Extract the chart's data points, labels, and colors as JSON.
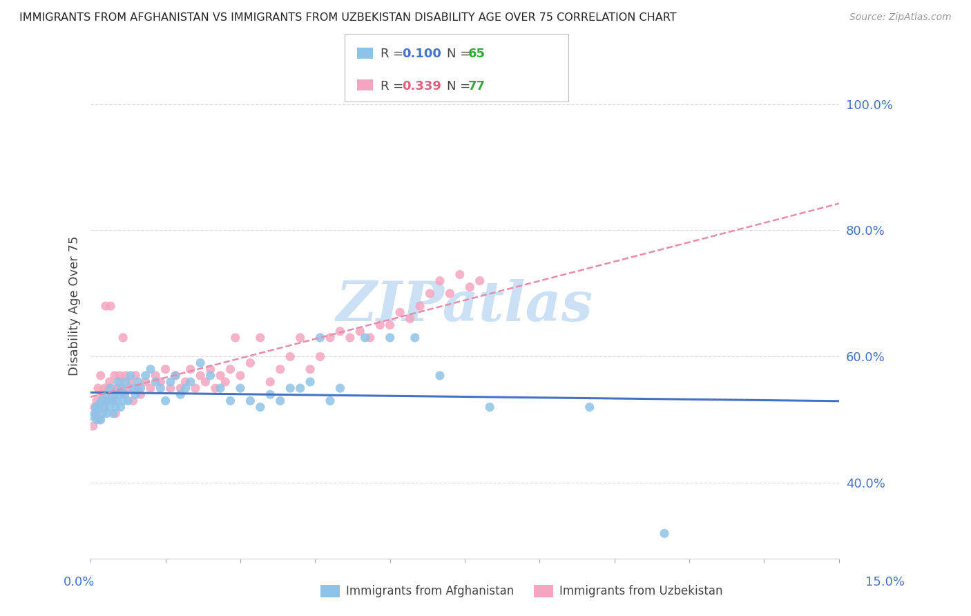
{
  "title": "IMMIGRANTS FROM AFGHANISTAN VS IMMIGRANTS FROM UZBEKISTAN DISABILITY AGE OVER 75 CORRELATION CHART",
  "source": "Source: ZipAtlas.com",
  "ylabel": "Disability Age Over 75",
  "xmin": 0.0,
  "xmax": 15.0,
  "ymin": 28.0,
  "ymax": 108.0,
  "yticks": [
    40.0,
    60.0,
    80.0,
    100.0
  ],
  "grid_color": "#dddddd",
  "background_color": "#ffffff",
  "series1_label": "Immigrants from Afghanistan",
  "series1_color": "#8ec3e8",
  "series1_R": 0.1,
  "series1_N": 65,
  "series1_x": [
    0.05,
    0.08,
    0.1,
    0.12,
    0.15,
    0.18,
    0.2,
    0.22,
    0.25,
    0.28,
    0.3,
    0.32,
    0.35,
    0.38,
    0.4,
    0.42,
    0.45,
    0.48,
    0.5,
    0.52,
    0.55,
    0.58,
    0.6,
    0.62,
    0.65,
    0.68,
    0.7,
    0.75,
    0.8,
    0.85,
    0.9,
    0.95,
    1.0,
    1.1,
    1.2,
    1.3,
    1.4,
    1.5,
    1.6,
    1.7,
    1.8,
    1.9,
    2.0,
    2.2,
    2.4,
    2.6,
    2.8,
    3.0,
    3.2,
    3.4,
    3.6,
    3.8,
    4.0,
    4.2,
    4.4,
    4.6,
    4.8,
    5.0,
    5.5,
    6.0,
    6.5,
    7.0,
    8.0,
    10.0,
    11.5
  ],
  "series1_y": [
    50.5,
    51.0,
    52.0,
    50.0,
    51.5,
    52.5,
    50.0,
    53.0,
    51.0,
    52.0,
    54.0,
    51.0,
    53.0,
    52.0,
    55.0,
    53.0,
    51.0,
    54.0,
    52.0,
    53.0,
    56.0,
    54.0,
    52.0,
    55.0,
    53.0,
    54.0,
    56.0,
    53.0,
    57.0,
    55.0,
    54.0,
    56.0,
    55.0,
    57.0,
    58.0,
    56.0,
    55.0,
    53.0,
    56.0,
    57.0,
    54.0,
    55.0,
    56.0,
    59.0,
    57.0,
    55.0,
    53.0,
    55.0,
    53.0,
    52.0,
    54.0,
    53.0,
    55.0,
    55.0,
    56.0,
    63.0,
    53.0,
    55.0,
    63.0,
    63.0,
    63.0,
    57.0,
    52.0,
    52.0,
    32.0
  ],
  "series2_label": "Immigrants from Uzbekistan",
  "series2_color": "#f4a5c0",
  "series2_R": 0.339,
  "series2_N": 77,
  "series2_x": [
    0.05,
    0.08,
    0.1,
    0.12,
    0.15,
    0.18,
    0.2,
    0.22,
    0.25,
    0.28,
    0.3,
    0.32,
    0.35,
    0.38,
    0.4,
    0.42,
    0.45,
    0.48,
    0.5,
    0.52,
    0.55,
    0.58,
    0.6,
    0.62,
    0.65,
    0.68,
    0.7,
    0.75,
    0.8,
    0.85,
    0.9,
    0.95,
    1.0,
    1.1,
    1.2,
    1.3,
    1.4,
    1.5,
    1.6,
    1.7,
    1.8,
    1.9,
    2.0,
    2.1,
    2.2,
    2.3,
    2.4,
    2.5,
    2.6,
    2.7,
    2.8,
    2.9,
    3.0,
    3.2,
    3.4,
    3.6,
    3.8,
    4.0,
    4.2,
    4.4,
    4.6,
    4.8,
    5.0,
    5.2,
    5.4,
    5.6,
    5.8,
    6.0,
    6.2,
    6.4,
    6.6,
    6.8,
    7.0,
    7.2,
    7.4,
    7.6,
    7.8
  ],
  "series2_y": [
    49.0,
    52.0,
    51.0,
    53.0,
    55.0,
    50.0,
    57.0,
    54.0,
    52.0,
    55.0,
    68.0,
    53.0,
    55.0,
    56.0,
    68.0,
    54.0,
    53.0,
    57.0,
    51.0,
    55.0,
    55.0,
    57.0,
    56.0,
    55.0,
    63.0,
    54.0,
    57.0,
    55.0,
    56.0,
    53.0,
    57.0,
    55.0,
    54.0,
    56.0,
    55.0,
    57.0,
    56.0,
    58.0,
    55.0,
    57.0,
    55.0,
    56.0,
    58.0,
    55.0,
    57.0,
    56.0,
    58.0,
    55.0,
    57.0,
    56.0,
    58.0,
    63.0,
    57.0,
    59.0,
    63.0,
    56.0,
    58.0,
    60.0,
    63.0,
    58.0,
    60.0,
    63.0,
    64.0,
    63.0,
    64.0,
    63.0,
    65.0,
    65.0,
    67.0,
    66.0,
    68.0,
    70.0,
    72.0,
    70.0,
    73.0,
    71.0,
    72.0
  ],
  "trend1_color": "#4472c4",
  "trend2_color": "#e88aaa",
  "watermark": "ZIPatlas",
  "watermark_color": "#cce0f5",
  "legend_R1_text": "R = ",
  "legend_R1_val": "0.100",
  "legend_N1_text": "N = ",
  "legend_N1_val": "65",
  "legend_R2_text": "R = ",
  "legend_R2_val": "0.339",
  "legend_N2_text": "N = ",
  "legend_N2_val": "77",
  "R_color": "#4472c4",
  "R2_color": "#e06080",
  "N_color": "#33aa33"
}
